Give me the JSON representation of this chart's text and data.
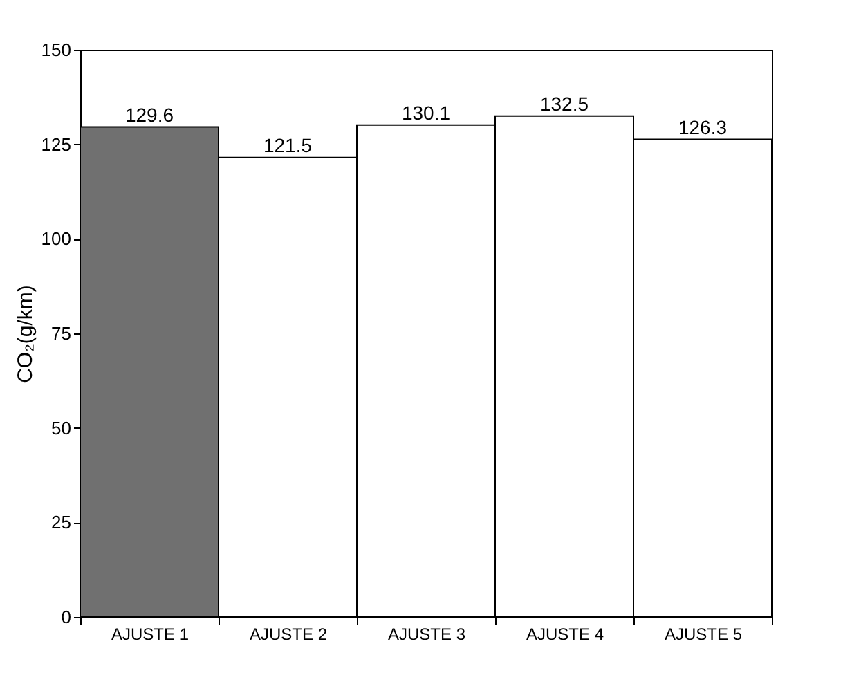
{
  "chart_data": {
    "type": "bar",
    "ylabel": "CO₂(g/km)",
    "categories": [
      "AJUSTE 1",
      "AJUSTE 2",
      "AJUSTE 3",
      "AJUSTE 4",
      "AJUSTE 5"
    ],
    "values": [
      129.6,
      121.5,
      130.1,
      132.5,
      126.3
    ],
    "colors": [
      "#707070",
      "#ffffff",
      "#ffffff",
      "#ffffff",
      "#ffffff"
    ],
    "ylim": [
      0,
      150
    ],
    "yticks": [
      0,
      25,
      50,
      75,
      100,
      125,
      150
    ],
    "data_labels": true,
    "grid": false
  }
}
